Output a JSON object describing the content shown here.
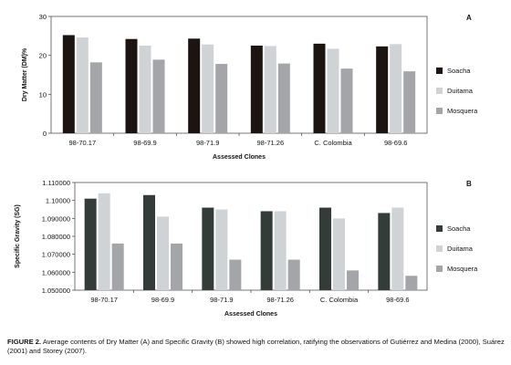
{
  "chart_data": [
    {
      "type": "bar",
      "panel_label": "A",
      "categories": [
        "98-70.17",
        "98-69.9",
        "98-71.9",
        "98-71.26",
        "C. Colombia",
        "98-69.6"
      ],
      "series": [
        {
          "name": "Soacha",
          "color": "#1c1410",
          "values": [
            25.2,
            24.2,
            24.3,
            22.5,
            23.0,
            22.3
          ]
        },
        {
          "name": "Duitama",
          "color": "#d0d3d6",
          "values": [
            24.6,
            22.5,
            22.8,
            22.4,
            21.7,
            22.9
          ]
        },
        {
          "name": "Mosquera",
          "color": "#a3a5a8",
          "values": [
            18.2,
            18.9,
            17.8,
            17.9,
            16.6,
            15.9
          ]
        }
      ],
      "xlabel": "Assessed Clones",
      "ylabel": "Dry Matter (DM)%",
      "ylim": [
        0,
        30
      ],
      "yticks": [
        0,
        10,
        20,
        30
      ],
      "ytick_labels": [
        "0",
        "10",
        "20",
        "30"
      ],
      "legend_position": "right",
      "grid": false
    },
    {
      "type": "bar",
      "panel_label": "B",
      "categories": [
        "98-70.17",
        "98-69.9",
        "98-71.9",
        "98-71.26",
        "C. Colombia",
        "98-69.6"
      ],
      "series": [
        {
          "name": "Soacha",
          "color": "#343c3a",
          "values": [
            1.101,
            1.103,
            1.096,
            1.094,
            1.096,
            1.093
          ]
        },
        {
          "name": "Duitama",
          "color": "#d0d3d6",
          "values": [
            1.104,
            1.091,
            1.095,
            1.094,
            1.09,
            1.096
          ]
        },
        {
          "name": "Mosquera",
          "color": "#a3a5a8",
          "values": [
            1.076,
            1.076,
            1.067,
            1.067,
            1.061,
            1.058
          ]
        }
      ],
      "xlabel": "Assessed Clones",
      "ylabel": "Specific Gravity (SG)",
      "ylim": [
        1.05,
        1.11
      ],
      "yticks": [
        1.05,
        1.06,
        1.07,
        1.08,
        1.09,
        1.1,
        1.11
      ],
      "ytick_labels": [
        "1.050000",
        "1.060000",
        "1.070000",
        "1.080000",
        "1.090000",
        "1.10000",
        "1.110000"
      ],
      "legend_position": "right",
      "grid": false
    }
  ],
  "caption": {
    "label": "FIGURE 2.",
    "text": " Average contents of Dry Matter (A) and Specific Gravity (B) showed high correlation, ratifying the observations of Gutiérrez and Medina (2000), Suárez (2001) and Storey (2007)."
  }
}
